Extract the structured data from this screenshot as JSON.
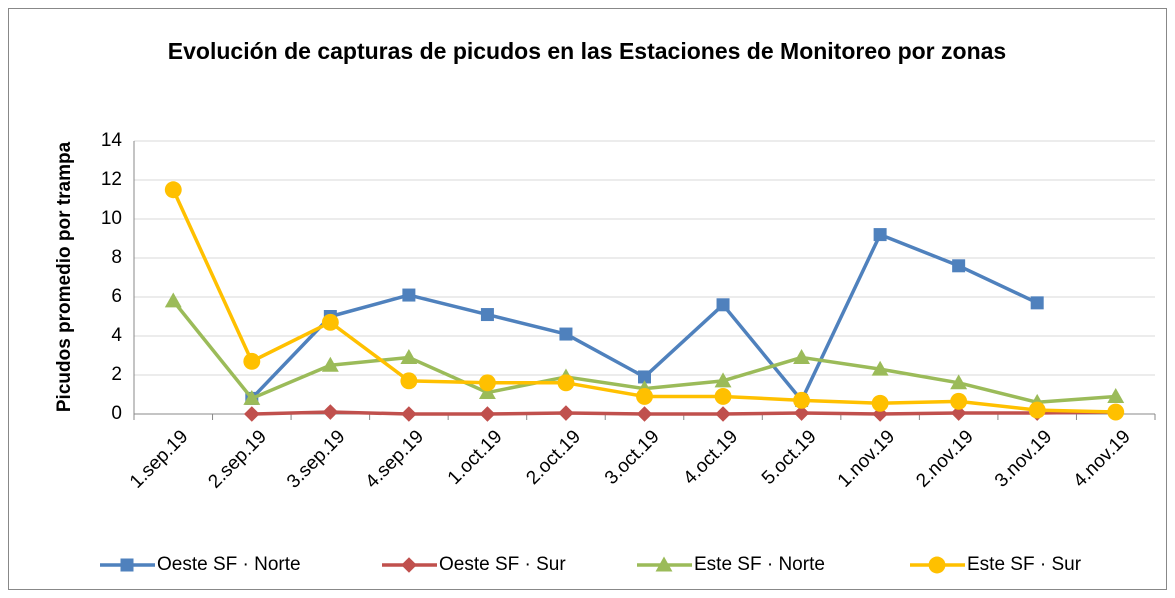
{
  "chart_data": {
    "type": "line",
    "title": "Evolución de capturas de picudos en las Estaciones de Monitoreo por zonas",
    "y_label": "Picudos promedio por trampa",
    "categories": [
      "1.sep.19",
      "2.sep.19",
      "3.sep.19",
      "4.sep.19",
      "1.oct.19",
      "2.oct.19",
      "3.oct.19",
      "4.oct.19",
      "5.oct.19",
      "1.nov.19",
      "2.nov.19",
      "3.nov.19",
      "4.nov.19"
    ],
    "series": [
      {
        "name": "Oeste SF · Norte",
        "color": "#4f81bd",
        "marker": "square",
        "values": [
          null,
          0.8,
          5.0,
          6.1,
          5.1,
          4.1,
          1.9,
          5.6,
          0.7,
          9.2,
          7.6,
          5.7,
          null
        ]
      },
      {
        "name": "Oeste SF · Sur",
        "color": "#c0504d",
        "marker": "diamond",
        "values": [
          null,
          0,
          0.1,
          0,
          0,
          0.05,
          0,
          0,
          0.05,
          0,
          0.05,
          0.05,
          0.1
        ]
      },
      {
        "name": "Este SF · Norte",
        "color": "#9bbb59",
        "marker": "triangle",
        "values": [
          5.8,
          0.8,
          2.5,
          2.9,
          1.1,
          1.9,
          1.3,
          1.7,
          2.9,
          2.3,
          1.6,
          0.6,
          0.9
        ]
      },
      {
        "name": "Este SF · Sur",
        "color": "#ffc000",
        "marker": "circle",
        "values": [
          11.5,
          2.7,
          4.7,
          1.7,
          1.6,
          1.6,
          0.9,
          0.9,
          0.7,
          0.55,
          0.65,
          0.2,
          0.1
        ]
      }
    ],
    "ylim": [
      0,
      14
    ],
    "yticks": [
      0,
      2,
      4,
      6,
      8,
      10,
      12,
      14
    ],
    "grid": true,
    "legend": "bottom"
  }
}
